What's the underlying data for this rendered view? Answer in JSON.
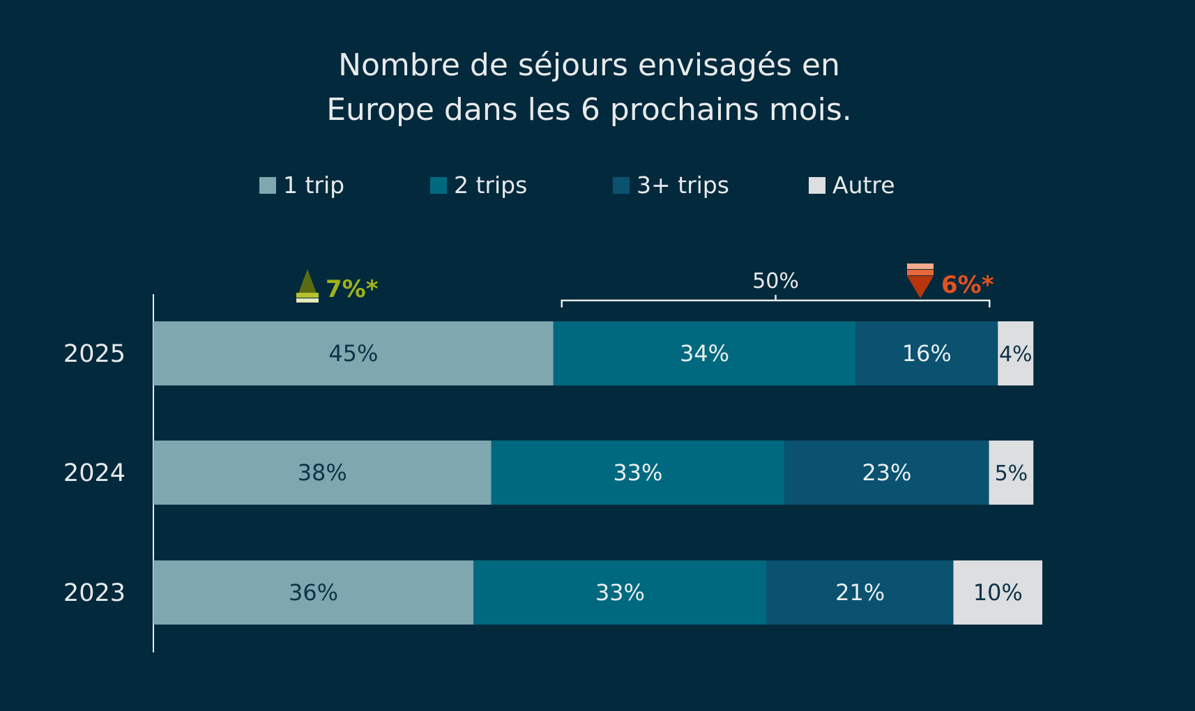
{
  "chart_data": {
    "type": "bar",
    "orientation": "horizontal",
    "stacked": true,
    "title_lines": [
      "Nombre de séjours envisagés en",
      "Europe dans les 6 prochains mois."
    ],
    "xlabel": "",
    "ylabel": "",
    "xlim": [
      0,
      100
    ],
    "grid": false,
    "legend_position": "top",
    "categories": [
      "2025",
      "2024",
      "2023"
    ],
    "series": [
      {
        "name": "1 trip",
        "values": [
          45,
          38,
          36
        ],
        "labels": [
          "45%",
          "38%",
          "36%"
        ],
        "color": "#7fa7b0",
        "label_color": "#0f3347"
      },
      {
        "name": "2 trips",
        "values": [
          34,
          33,
          33
        ],
        "labels": [
          "34%",
          "33%",
          "33%"
        ],
        "color": "#00697f",
        "label_color": "#e8eef0"
      },
      {
        "name": "3+ trips",
        "values": [
          16,
          23,
          21
        ],
        "labels": [
          "16%",
          "23%",
          "21%"
        ],
        "color": "#0a5270",
        "label_color": "#e8eef0"
      },
      {
        "name": "Autre",
        "values": [
          4,
          5,
          10
        ],
        "labels": [
          "4%",
          "5%",
          "10%"
        ],
        "color": "#dcdedf",
        "label_color": "#0f3347"
      }
    ],
    "annotations": {
      "up_change": {
        "text": "7%*",
        "color": "#9fb21a",
        "applies_to": "1 trip"
      },
      "down_change": {
        "text": "6%*",
        "color": "#e2521f",
        "applies_to": "3+ trips"
      },
      "bracket": {
        "text": "50%",
        "spans": [
          "2 trips",
          "3+ trips"
        ],
        "category": "2025"
      }
    }
  },
  "colors": {
    "background": "#03293c",
    "text": "#e8eaec",
    "axis": "#e8eaec"
  }
}
